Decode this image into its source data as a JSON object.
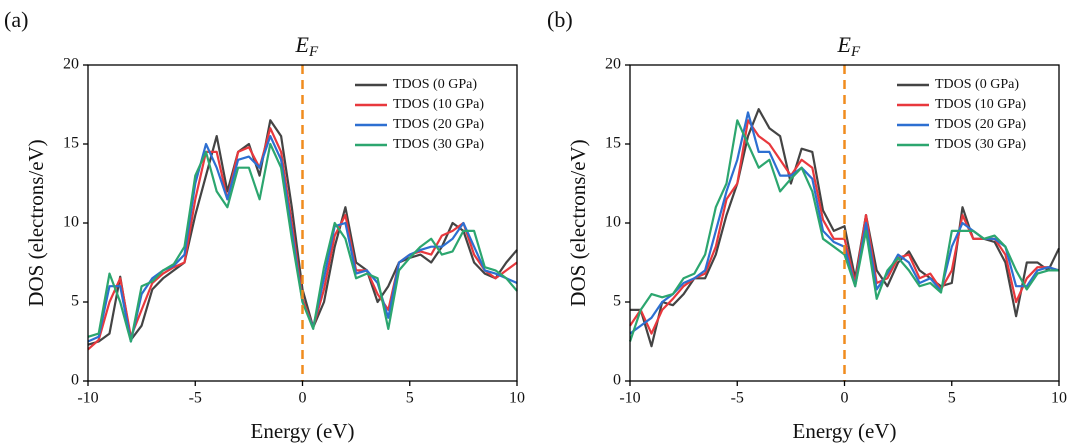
{
  "chart_data": [
    {
      "type": "line",
      "label": "(a)",
      "annotation": {
        "text": "E",
        "subscript": "F"
      },
      "xlabel": "Energy (eV)",
      "ylabel": "DOS (electrons/eV)",
      "xlim": [
        -10,
        10
      ],
      "ylim": [
        0,
        20
      ],
      "xticks": [
        -10,
        -5,
        0,
        5,
        10
      ],
      "yticks": [
        0,
        5,
        10,
        15,
        20
      ],
      "reference_line": {
        "x": 0,
        "color": "#f08c1e"
      },
      "legend": "upper right",
      "x": [
        -10,
        -9.5,
        -9,
        -8.5,
        -8,
        -7.5,
        -7,
        -6.5,
        -6,
        -5.5,
        -5,
        -4.5,
        -4,
        -3.5,
        -3,
        -2.5,
        -2,
        -1.5,
        -1,
        -0.5,
        0,
        0.5,
        1,
        1.5,
        2,
        2.5,
        3,
        3.5,
        4,
        4.5,
        5,
        5.5,
        6,
        6.5,
        7,
        7.5,
        8,
        8.5,
        9,
        9.5,
        10
      ],
      "series": [
        {
          "name": "TDOS (0 GPa)",
          "color": "#444444",
          "values": [
            2.3,
            2.5,
            3,
            6.6,
            2.6,
            3.5,
            5.8,
            6.5,
            7,
            7.5,
            10.5,
            13,
            15.5,
            12,
            14.5,
            15,
            13,
            16.5,
            15.5,
            11,
            5.8,
            3.4,
            5,
            8.5,
            11,
            7.5,
            7,
            5,
            6,
            7.5,
            7.8,
            8,
            7.5,
            8.5,
            10,
            9.5,
            7.5,
            6.8,
            6.5,
            7.5,
            8.3
          ]
        },
        {
          "name": "TDOS (10 GPa)",
          "color": "#e8383d",
          "values": [
            2,
            2.6,
            5,
            6.5,
            2.8,
            4.5,
            6.2,
            6.8,
            7.2,
            7.5,
            11.5,
            14.5,
            14.5,
            11.5,
            14.5,
            14.8,
            13.5,
            16,
            14.5,
            10,
            5.2,
            3.4,
            5.8,
            9.2,
            10.5,
            7,
            7,
            5.5,
            4.5,
            7.5,
            8,
            8.2,
            8,
            9.2,
            9.5,
            10,
            8,
            7,
            6.5,
            7,
            7.5
          ]
        },
        {
          "name": "TDOS (20 GPa)",
          "color": "#2d6fd1",
          "values": [
            2.5,
            2.8,
            6,
            6,
            2.5,
            5.5,
            6.5,
            7,
            7.3,
            8,
            12.5,
            15,
            13.5,
            11.5,
            14,
            14.2,
            13.5,
            15.5,
            14,
            9.5,
            5,
            3.4,
            6.5,
            9.8,
            10,
            6.8,
            7,
            6.2,
            4,
            7.5,
            8,
            8.3,
            8.5,
            8.5,
            9,
            10,
            8.5,
            7,
            6.8,
            6.5,
            6.2
          ]
        },
        {
          "name": "TDOS (30 GPa)",
          "color": "#2ca66f",
          "values": [
            2.8,
            3,
            6.8,
            5,
            2.5,
            6,
            6.3,
            7,
            7.4,
            8.5,
            13,
            14.5,
            12,
            11,
            13.5,
            13.5,
            11.5,
            15,
            13.5,
            9,
            5,
            3.3,
            7.2,
            10,
            9,
            6.5,
            6.8,
            6.5,
            3.3,
            7,
            7.8,
            8.5,
            9,
            8,
            8.2,
            9.5,
            9.5,
            7.2,
            7,
            6.5,
            5.7
          ]
        }
      ]
    },
    {
      "type": "line",
      "label": "(b)",
      "annotation": {
        "text": "E",
        "subscript": "F"
      },
      "xlabel": "Energy (eV)",
      "ylabel": "DOS (electrons/eV)",
      "xlim": [
        -10,
        10
      ],
      "ylim": [
        0,
        20
      ],
      "xticks": [
        -10,
        -5,
        0,
        5,
        10
      ],
      "yticks": [
        0,
        5,
        10,
        15,
        20
      ],
      "reference_line": {
        "x": 0,
        "color": "#f08c1e"
      },
      "legend": "upper right",
      "x": [
        -10,
        -9.5,
        -9,
        -8.5,
        -8,
        -7.5,
        -7,
        -6.5,
        -6,
        -5.5,
        -5,
        -4.5,
        -4,
        -3.5,
        -3,
        -2.5,
        -2,
        -1.5,
        -1,
        -0.5,
        0,
        0.5,
        1,
        1.5,
        2,
        2.5,
        3,
        3.5,
        4,
        4.5,
        5,
        5.5,
        6,
        6.5,
        7,
        7.5,
        8,
        8.5,
        9,
        9.5,
        10
      ],
      "series": [
        {
          "name": "TDOS (0 GPa)",
          "color": "#444444",
          "values": [
            4.5,
            4.5,
            2.2,
            5,
            4.8,
            5.5,
            6.5,
            6.5,
            8,
            10.5,
            12.5,
            15.5,
            17.2,
            16,
            15.5,
            12.5,
            14.7,
            14.5,
            10.8,
            9.5,
            9.8,
            6.5,
            10.5,
            7,
            6,
            7.5,
            8.2,
            7,
            6.5,
            6,
            6.2,
            11,
            9,
            9,
            8.8,
            7.5,
            4.1,
            7.5,
            7.5,
            7,
            8.4
          ]
        },
        {
          "name": "TDOS (10 GPa)",
          "color": "#e8383d",
          "values": [
            3.5,
            4.5,
            3,
            4.5,
            5.2,
            6,
            6.5,
            6.8,
            8.5,
            11.5,
            12.5,
            16.5,
            15.5,
            15,
            14,
            13,
            14,
            13.5,
            10.2,
            9,
            9,
            6.2,
            10.5,
            6.2,
            6.5,
            7.8,
            8,
            6.5,
            6.8,
            5.8,
            7,
            10.5,
            9,
            9,
            9,
            8,
            5,
            6.5,
            7.2,
            7.2,
            7
          ]
        },
        {
          "name": "TDOS (20 GPa)",
          "color": "#2d6fd1",
          "values": [
            3,
            3.5,
            4,
            5,
            5.5,
            6.2,
            6.5,
            7,
            9.5,
            12,
            14,
            17,
            14.5,
            14.5,
            13,
            13,
            13.5,
            12.8,
            9.5,
            8.8,
            8.5,
            6,
            10,
            5.8,
            6.8,
            8,
            7.5,
            6.2,
            6.5,
            5.7,
            8.5,
            10,
            9.5,
            9,
            9,
            8.5,
            6,
            6,
            7,
            7.2,
            7
          ]
        },
        {
          "name": "TDOS (30 GPa)",
          "color": "#2ca66f",
          "values": [
            2.5,
            4.5,
            5.5,
            5.3,
            5.5,
            6.5,
            6.8,
            8,
            11,
            12.5,
            16.5,
            15,
            13.5,
            14,
            12,
            12.8,
            13.5,
            12,
            9,
            8.5,
            8,
            6,
            9.5,
            5.2,
            7,
            7.8,
            7,
            6,
            6.2,
            5.6,
            9.5,
            9.5,
            9.5,
            9,
            9.2,
            8.5,
            7,
            5.8,
            6.8,
            7,
            7
          ]
        }
      ]
    }
  ]
}
